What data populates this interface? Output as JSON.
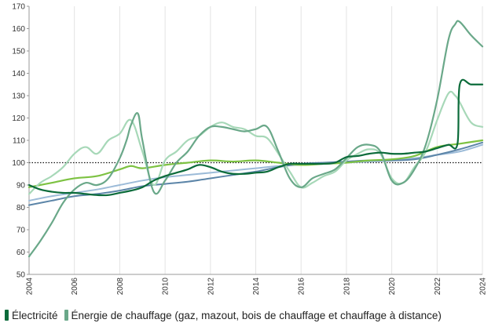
{
  "chart_data": {
    "type": "line",
    "xlim": [
      2004,
      2024
    ],
    "ylim": [
      50,
      170
    ],
    "x_ticks": [
      "2004",
      "2006",
      "2008",
      "2010",
      "2012",
      "2014",
      "2016",
      "2018",
      "2020",
      "2022",
      "2024"
    ],
    "y_ticks": [
      "50",
      "60",
      "70",
      "80",
      "90",
      "100",
      "110",
      "120",
      "130",
      "140",
      "150",
      "160",
      "170"
    ],
    "reference_line": 100,
    "grid": "vertical",
    "legend_position": "bottom",
    "series": [
      {
        "name": "Électricité",
        "color": "#0b6b3a",
        "width": 2.2,
        "x": [
          2004,
          2004.5,
          2005,
          2005.5,
          2006,
          2006.5,
          2007,
          2007.5,
          2008,
          2008.5,
          2009,
          2009.5,
          2010,
          2010.5,
          2011,
          2011.5,
          2012,
          2012.5,
          2013,
          2013.5,
          2014,
          2014.5,
          2015,
          2015.5,
          2016,
          2016.5,
          2017,
          2017.5,
          2018,
          2018.5,
          2019,
          2019.5,
          2020,
          2020.5,
          2021,
          2021.5,
          2022,
          2022.5,
          2022.9,
          2023,
          2023.5,
          2024
        ],
        "y": [
          90,
          88,
          87,
          86.5,
          86.5,
          86,
          85.5,
          85.5,
          86.5,
          87.5,
          89,
          92,
          94,
          95.5,
          97,
          99,
          98,
          96,
          95,
          95,
          95.5,
          96,
          98,
          99.5,
          99.5,
          99.5,
          99.5,
          100,
          102.5,
          103,
          104,
          104.5,
          104,
          104,
          104.5,
          105,
          106.5,
          108,
          108.5,
          135,
          135,
          135
        ]
      },
      {
        "name": "Énergie de chauffage (gaz, mazout, bois de chauffage et chauffage à distance)",
        "color": "#6aa889",
        "width": 2.2,
        "x": [
          2004,
          2004.5,
          2005,
          2005.5,
          2006,
          2006.5,
          2007,
          2007.5,
          2008,
          2008.3,
          2008.5,
          2008.8,
          2009,
          2009.5,
          2010,
          2010.5,
          2011,
          2011.5,
          2012,
          2012.5,
          2013,
          2013.5,
          2014,
          2014.5,
          2015,
          2015.5,
          2016,
          2016.5,
          2017,
          2017.5,
          2018,
          2018.5,
          2019,
          2019.5,
          2020,
          2020.5,
          2021,
          2021.5,
          2022,
          2022.5,
          2022.8,
          2023,
          2023.5,
          2024
        ],
        "y": [
          58,
          65,
          73,
          82,
          88,
          91,
          90,
          93,
          102,
          110,
          117,
          122,
          110,
          87,
          92,
          100,
          105,
          112,
          116,
          116,
          115,
          114,
          115,
          116,
          105,
          93,
          89,
          93,
          95,
          97,
          102,
          107,
          108,
          105,
          92,
          91,
          97,
          108,
          128,
          155,
          162,
          163,
          157,
          152
        ]
      },
      {
        "name": "",
        "color": "#a7d8b8",
        "width": 2.2,
        "x": [
          2004,
          2004.5,
          2005,
          2005.5,
          2006,
          2006.5,
          2007,
          2007.5,
          2008,
          2008.5,
          2009,
          2009.5,
          2010,
          2010.5,
          2011,
          2011.5,
          2012,
          2012.5,
          2013,
          2013.5,
          2014,
          2014.5,
          2015,
          2015.5,
          2016,
          2016.5,
          2017,
          2017.5,
          2018,
          2018.5,
          2019,
          2019.5,
          2020,
          2020.5,
          2021,
          2021.5,
          2022,
          2022.5,
          2022.8,
          2023,
          2023.5,
          2024
        ],
        "y": [
          86,
          91,
          94,
          98,
          104,
          107,
          104,
          110,
          113,
          119,
          105,
          90,
          101,
          105,
          110,
          112,
          116,
          118,
          116,
          115,
          112,
          111,
          104,
          96,
          89,
          91,
          94,
          96,
          101,
          104,
          106,
          104,
          93,
          91,
          98,
          105,
          119,
          131,
          130,
          127,
          118,
          116
        ]
      },
      {
        "name": "",
        "color": "#7dc242",
        "width": 2.2,
        "x": [
          2004,
          2005,
          2006,
          2007,
          2008,
          2008.5,
          2009,
          2010,
          2011,
          2012,
          2013,
          2014,
          2015,
          2016,
          2017,
          2018,
          2019,
          2020,
          2021,
          2022,
          2023,
          2024
        ],
        "y": [
          89,
          91,
          93,
          94,
          97,
          98.5,
          97.5,
          99,
          100,
          101,
          100.5,
          101,
          100,
          99,
          99.5,
          100,
          101,
          101.5,
          103,
          107,
          108.5,
          110
        ]
      },
      {
        "name": "",
        "color": "#5c85a8",
        "width": 2.0,
        "x": [
          2004,
          2005,
          2006,
          2007,
          2008,
          2009,
          2010,
          2011,
          2012,
          2013,
          2014,
          2015,
          2016,
          2017,
          2018,
          2019,
          2020,
          2021,
          2022,
          2023,
          2024
        ],
        "y": [
          81,
          83,
          85,
          86,
          87.5,
          89.5,
          90.5,
          91.5,
          93,
          94.5,
          96,
          98,
          99.5,
          100,
          100.5,
          101,
          101,
          101.5,
          103.5,
          106,
          109
        ]
      },
      {
        "name": "",
        "color": "#9cbbd8",
        "width": 2.0,
        "x": [
          2004,
          2005,
          2006,
          2007,
          2008,
          2009,
          2010,
          2011,
          2012,
          2013,
          2014,
          2015,
          2016,
          2017,
          2018,
          2019,
          2020,
          2021,
          2022,
          2023,
          2024
        ],
        "y": [
          83,
          85,
          86.5,
          88,
          90,
          92,
          93.5,
          94.5,
          95.5,
          96.5,
          97.5,
          98.5,
          99,
          99.5,
          100,
          100.5,
          101,
          102,
          103.5,
          105,
          108
        ]
      }
    ]
  },
  "legend": {
    "items": [
      {
        "label": "Électricité",
        "color": "#0b6b3a"
      },
      {
        "label": "Énergie de chauffage (gaz, mazout, bois de chauffage et chauffage à distance)",
        "color": "#6aa889"
      }
    ]
  }
}
